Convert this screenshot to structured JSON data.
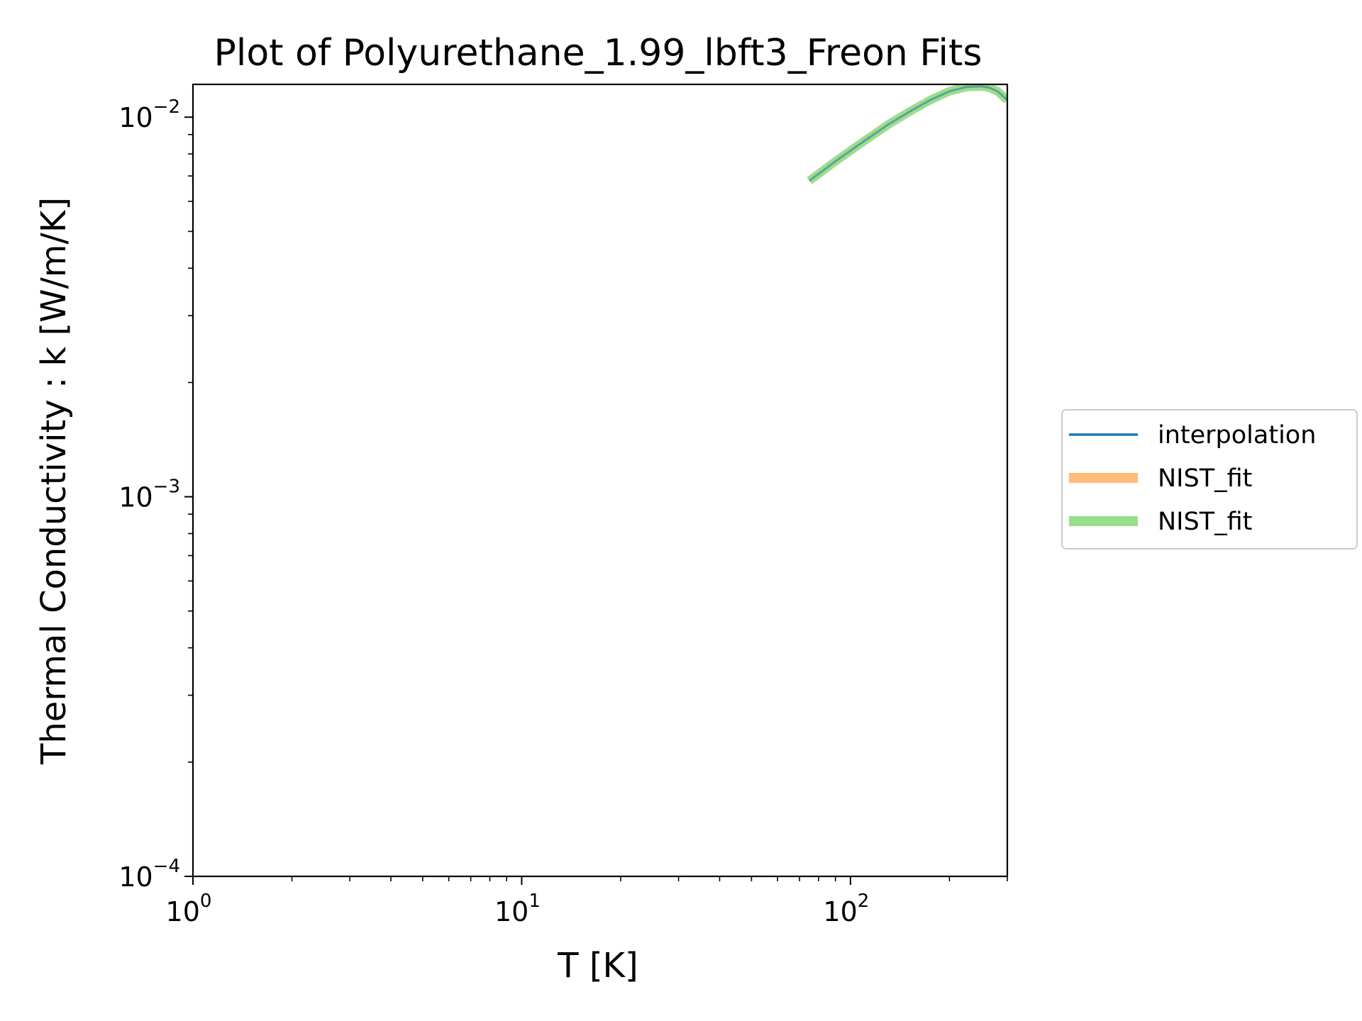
{
  "chart_data": {
    "type": "line",
    "title": "Plot of Polyurethane_1.99_lbft3_Freon Fits",
    "xlabel": "T [K]",
    "ylabel": "Thermal Conductivity : k [W/m/K]",
    "xscale": "log",
    "yscale": "log",
    "xlim": [
      1,
      300
    ],
    "ylim": [
      0.0001,
      0.0122
    ],
    "x_ticks": [
      {
        "base": "10",
        "exp": "0",
        "value": 1
      },
      {
        "base": "10",
        "exp": "1",
        "value": 10
      },
      {
        "base": "10",
        "exp": "2",
        "value": 100
      }
    ],
    "y_ticks": [
      {
        "base": "10",
        "exp": "−4",
        "value": 0.0001
      },
      {
        "base": "10",
        "exp": "−3",
        "value": 0.001
      },
      {
        "base": "10",
        "exp": "−2",
        "value": 0.01
      }
    ],
    "grid": false,
    "legend": "center-right outside",
    "series": [
      {
        "name": "interpolation",
        "color": "#1f77b4",
        "x": [
          75,
          90,
          110,
          130,
          150,
          175,
          200,
          225,
          250,
          265,
          280,
          300
        ],
        "y": [
          0.0068,
          0.00765,
          0.00865,
          0.00955,
          0.0103,
          0.0111,
          0.0117,
          0.012,
          0.01205,
          0.01195,
          0.0117,
          0.0111
        ]
      },
      {
        "name": "NIST_fit",
        "color": "#ffbb78",
        "x": [
          75,
          90,
          110,
          130,
          150,
          175,
          200,
          225,
          250,
          265,
          280,
          300
        ],
        "y": [
          0.0068,
          0.00765,
          0.00865,
          0.00955,
          0.0103,
          0.0111,
          0.0117,
          0.012,
          0.01205,
          0.01195,
          0.0117,
          0.0111
        ]
      },
      {
        "name": "NIST_fit",
        "color": "#98df8a",
        "x": [
          75,
          90,
          110,
          130,
          150,
          175,
          200,
          225,
          250,
          265,
          280,
          300
        ],
        "y": [
          0.0068,
          0.00765,
          0.00865,
          0.00955,
          0.0103,
          0.0111,
          0.0117,
          0.012,
          0.01205,
          0.01195,
          0.0117,
          0.0111
        ]
      }
    ]
  }
}
